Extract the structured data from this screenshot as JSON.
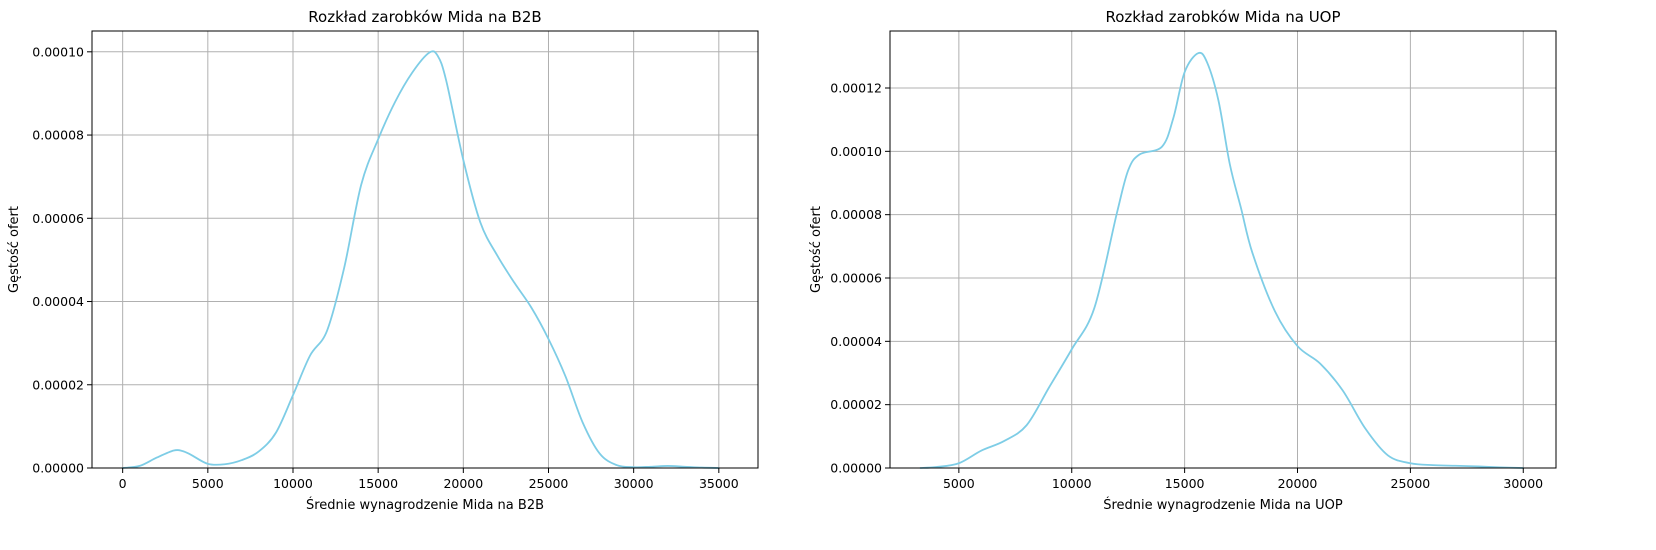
{
  "colors": {
    "line": "#7ecde6",
    "grid": "#b0b0b0",
    "axes": "#000000",
    "background": "#ffffff"
  },
  "chart_data": [
    {
      "type": "line",
      "title": "Rozkład zarobków Mida na B2B",
      "xlabel": "Średnie wynagrodzenie Mida na B2B",
      "ylabel": "Gęstość ofert",
      "xlim": [
        -1800,
        37300
      ],
      "ylim": [
        0,
        0.000105
      ],
      "xticks": [
        0,
        5000,
        10000,
        15000,
        20000,
        25000,
        30000,
        35000
      ],
      "xtick_labels": [
        "0",
        "5000",
        "10000",
        "15000",
        "20000",
        "25000",
        "30000",
        "35000"
      ],
      "yticks": [
        0,
        2e-05,
        4e-05,
        6e-05,
        8e-05,
        0.0001
      ],
      "ytick_labels": [
        "0.00000",
        "0.00002",
        "0.00004",
        "0.00006",
        "0.00008",
        "0.00010"
      ],
      "grid": true,
      "series": [
        {
          "x": [
            0,
            1000,
            2000,
            3000,
            3500,
            4000,
            5000,
            6000,
            7000,
            8000,
            9000,
            10000,
            11000,
            12000,
            13000,
            14000,
            15000,
            16000,
            17000,
            18000,
            18500,
            19000,
            20000,
            21000,
            22000,
            23000,
            24000,
            25000,
            26000,
            27000,
            28000,
            29000,
            30000,
            31000,
            32000,
            33000,
            34000,
            35000
          ],
          "y": [
            0,
            5e-07,
            2.5e-06,
            4.2e-06,
            4.1e-06,
            3.2e-06,
            1e-06,
            9e-07,
            1.9e-06,
            4e-06,
            8.5e-06,
            1.75e-05,
            2.7e-05,
            3.3e-05,
            4.8e-05,
            6.8e-05,
            7.9e-05,
            8.8e-05,
            9.5e-05,
            9.98e-05,
            9.9e-05,
            9.3e-05,
            7.4e-05,
            5.9e-05,
            5.1e-05,
            4.45e-05,
            3.85e-05,
            3.1e-05,
            2.2e-05,
            1.1e-05,
            3.5e-06,
            7e-07,
            2e-07,
            3e-07,
            5e-07,
            3e-07,
            1e-07,
            0
          ]
        }
      ]
    },
    {
      "type": "line",
      "title": "Rozkład zarobków Mida na UOP",
      "xlabel": "Średnie wynagrodzenie Mida na UOP",
      "ylabel": "Gęstość ofert",
      "xlim": [
        1950,
        31450
      ],
      "ylim": [
        0,
        0.000138
      ],
      "xticks": [
        5000,
        10000,
        15000,
        20000,
        25000,
        30000
      ],
      "xtick_labels": [
        "5000",
        "10000",
        "15000",
        "20000",
        "25000",
        "30000"
      ],
      "yticks": [
        0,
        2e-05,
        4e-05,
        6e-05,
        8e-05,
        0.0001,
        0.00012
      ],
      "ytick_labels": [
        "0.00000",
        "0.00002",
        "0.00004",
        "0.00006",
        "0.00008",
        "0.00010",
        "0.00012"
      ],
      "grid": true,
      "series": [
        {
          "x": [
            3300,
            4000,
            5000,
            6000,
            7000,
            8000,
            9000,
            10000,
            11000,
            12000,
            12500,
            13000,
            14000,
            14500,
            15000,
            15600,
            16000,
            16500,
            17000,
            17500,
            18000,
            19000,
            20000,
            21000,
            22000,
            23000,
            24000,
            25000,
            26000,
            27000,
            28000,
            29000,
            30000
          ],
          "y": [
            0,
            3e-07,
            1.5e-06,
            5.5e-06,
            8.5e-06,
            1.35e-05,
            2.55e-05,
            3.75e-05,
            5.05e-05,
            8.05e-05,
            9.4e-05,
            9.9e-05,
            0.0001015,
            0.0001105,
            0.000125,
            0.000131,
            0.000128,
            0.000116,
            9.6e-05,
            8.2e-05,
            6.8e-05,
            4.95e-05,
            3.85e-05,
            3.3e-05,
            2.45e-05,
            1.25e-05,
            4e-06,
            1.5e-06,
            9e-07,
            7e-07,
            5e-07,
            2e-07,
            0
          ]
        }
      ]
    }
  ]
}
